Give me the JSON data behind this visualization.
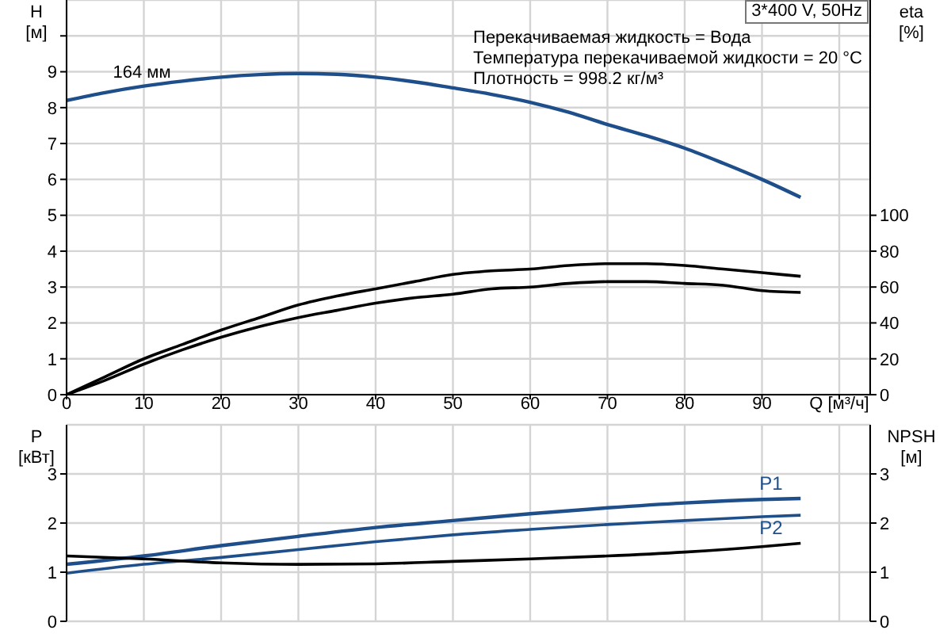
{
  "chart_data": [
    {
      "type": "line",
      "xlabel": "Q [м³/ч]",
      "ylabel": "H [м]",
      "y2label": "eta [%]",
      "x": [
        0,
        5,
        10,
        15,
        20,
        25,
        30,
        35,
        40,
        45,
        50,
        55,
        60,
        65,
        70,
        75,
        80,
        85,
        90,
        95
      ],
      "xlim": [
        0,
        104
      ],
      "xticks": [
        0,
        10,
        20,
        30,
        40,
        50,
        60,
        70,
        80,
        90,
        {
          "value": 100,
          "label": null
        }
      ],
      "ylim": [
        0,
        11
      ],
      "yticks": [
        0,
        1,
        2,
        3,
        4,
        5,
        6,
        7,
        8,
        9,
        {
          "value": 10,
          "label": null
        }
      ],
      "y2lim": [
        0,
        220
      ],
      "y2ticks": [
        0,
        20,
        40,
        60,
        80,
        100
      ],
      "grid": true,
      "legend": false,
      "marker": "none",
      "series": [
        {
          "color": "#1f4f8b",
          "values": [
            8.2,
            8.42,
            8.6,
            8.74,
            8.85,
            8.92,
            8.95,
            8.93,
            8.85,
            8.72,
            8.55,
            8.37,
            8.15,
            7.87,
            7.53,
            7.22,
            6.87,
            6.45,
            6.0,
            5.5
          ]
        },
        {
          "color": "#000000",
          "axis": "y2",
          "values": [
            0,
            10,
            20,
            28,
            36,
            43,
            50,
            55,
            59,
            63,
            67,
            69,
            70,
            72,
            73,
            73,
            72,
            70,
            68,
            66
          ]
        },
        {
          "color": "#000000",
          "axis": "y2",
          "values": [
            0,
            8,
            17,
            25,
            32,
            38,
            43,
            47,
            51,
            54,
            56,
            59,
            60,
            62,
            63,
            63,
            62,
            61,
            58,
            57
          ]
        }
      ],
      "annotations": [
        "3*400 V, 50Hz",
        "Перекачиваемая жидкость = Вода",
        "Температура перекачиваемой жидкости = 20 °C",
        "Плотность = 998.2 кг/м³",
        {
          "text": "164 мм",
          "x": 6,
          "y": 8.7
        }
      ]
    },
    {
      "type": "line",
      "ylabel": "P [кВт]",
      "y2label": "NPSH [м]",
      "x": [
        0,
        10,
        20,
        30,
        40,
        50,
        60,
        70,
        80,
        90,
        95
      ],
      "xlim": [
        0,
        104
      ],
      "xticks": [
        0,
        10,
        20,
        30,
        40,
        50,
        60,
        70,
        80,
        90,
        100
      ],
      "ylim": [
        0,
        4
      ],
      "yticks": [
        0,
        1,
        2,
        3
      ],
      "y2lim": [
        0,
        4
      ],
      "y2ticks": [
        0,
        1,
        2,
        3
      ],
      "grid": true,
      "legend": false,
      "marker": "none",
      "tick_labels": "y",
      "series": [
        {
          "name": "P1",
          "color": "#1f4f8b",
          "values": [
            1.16,
            1.33,
            1.54,
            1.73,
            1.91,
            2.05,
            2.19,
            2.31,
            2.41,
            2.48,
            2.5
          ]
        },
        {
          "name": "P2",
          "color": "#1f4f8b",
          "values": [
            0.98,
            1.16,
            1.3,
            1.46,
            1.62,
            1.76,
            1.87,
            1.97,
            2.05,
            2.13,
            2.16
          ]
        },
        {
          "color": "#000000",
          "axis": "y2",
          "values": [
            1.33,
            1.27,
            1.19,
            1.16,
            1.17,
            1.22,
            1.27,
            1.33,
            1.41,
            1.52,
            1.59
          ]
        }
      ]
    }
  ]
}
